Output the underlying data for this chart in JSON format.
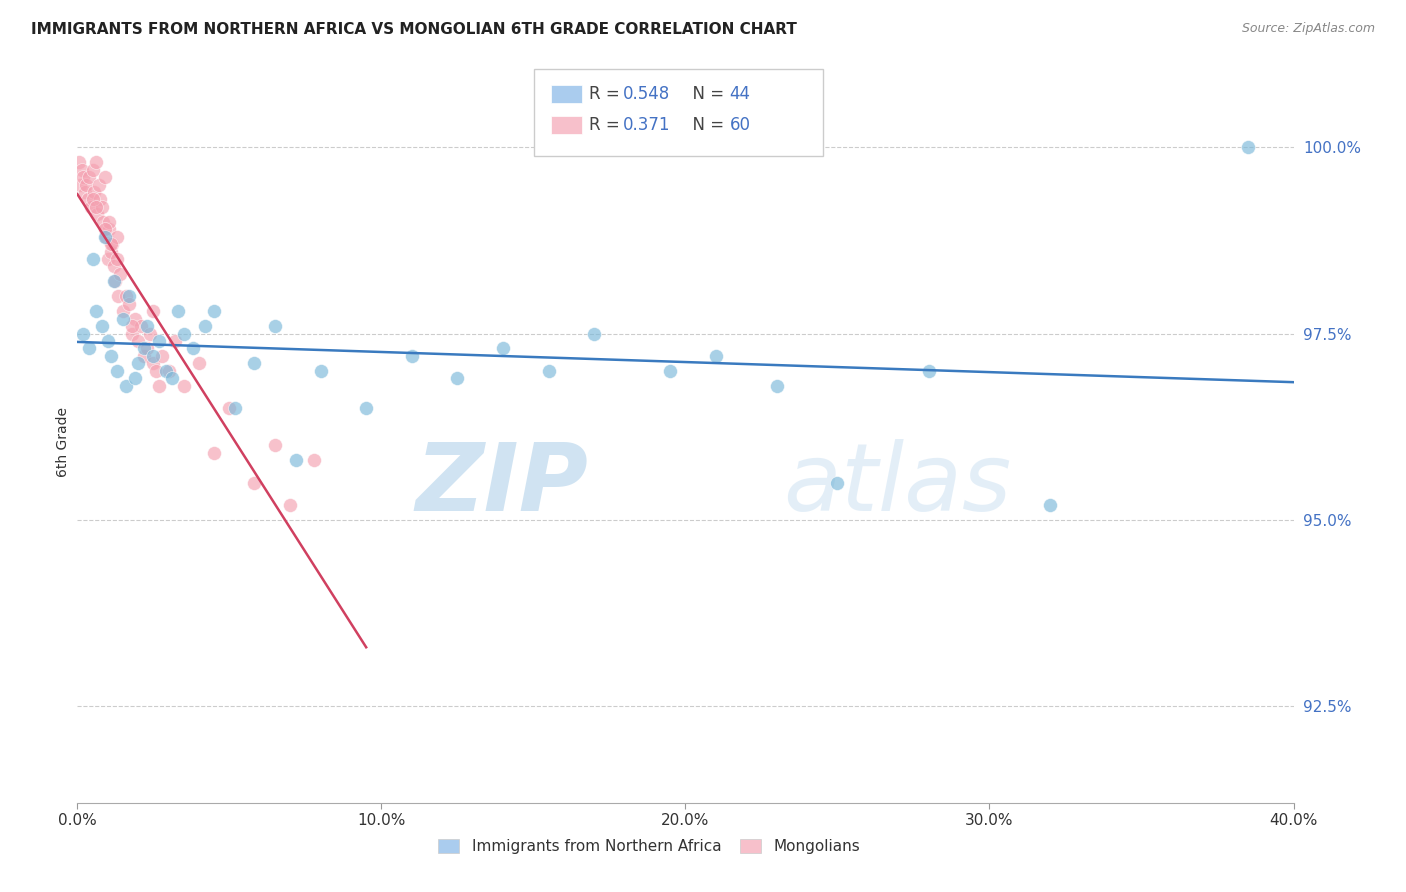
{
  "title": "IMMIGRANTS FROM NORTHERN AFRICA VS MONGOLIAN 6TH GRADE CORRELATION CHART",
  "source": "Source: ZipAtlas.com",
  "ylabel": "6th Grade",
  "yticks": [
    92.5,
    95.0,
    97.5,
    100.0
  ],
  "ytick_labels": [
    "92.5%",
    "95.0%",
    "97.5%",
    "100.0%"
  ],
  "xticks": [
    0,
    10,
    20,
    30,
    40
  ],
  "xtick_labels": [
    "0.0%",
    "10.0%",
    "20.0%",
    "30.0%",
    "40.0%"
  ],
  "xmin": 0.0,
  "xmax": 40.0,
  "ymin": 91.2,
  "ymax": 100.9,
  "blue_R": 0.548,
  "blue_N": 44,
  "pink_R": 0.371,
  "pink_N": 60,
  "blue_color": "#7ab8d9",
  "pink_color": "#f4a0b0",
  "blue_line_color": "#3a7abf",
  "pink_line_color": "#d04060",
  "legend_blue_color": "#aaccee",
  "legend_pink_color": "#f7c0cb",
  "watermark_zip": "ZIP",
  "watermark_atlas": "atlas",
  "blue_points_x": [
    0.2,
    0.4,
    0.5,
    0.6,
    0.8,
    0.9,
    1.0,
    1.1,
    1.2,
    1.3,
    1.5,
    1.6,
    1.7,
    1.9,
    2.0,
    2.2,
    2.3,
    2.5,
    2.7,
    2.9,
    3.1,
    3.3,
    3.5,
    3.8,
    4.2,
    4.5,
    5.2,
    5.8,
    6.5,
    7.2,
    8.0,
    9.5,
    11.0,
    12.5,
    14.0,
    15.5,
    17.0,
    19.5,
    21.0,
    23.0,
    25.0,
    28.0,
    32.0,
    38.5
  ],
  "blue_points_y": [
    97.5,
    97.3,
    98.5,
    97.8,
    97.6,
    98.8,
    97.4,
    97.2,
    98.2,
    97.0,
    97.7,
    96.8,
    98.0,
    96.9,
    97.1,
    97.3,
    97.6,
    97.2,
    97.4,
    97.0,
    96.9,
    97.8,
    97.5,
    97.3,
    97.6,
    97.8,
    96.5,
    97.1,
    97.6,
    95.8,
    97.0,
    96.5,
    97.2,
    96.9,
    97.3,
    97.0,
    97.5,
    97.0,
    97.2,
    96.8,
    95.5,
    97.0,
    95.2,
    100.0
  ],
  "pink_points_x": [
    0.05,
    0.1,
    0.15,
    0.2,
    0.25,
    0.3,
    0.35,
    0.4,
    0.45,
    0.5,
    0.55,
    0.6,
    0.65,
    0.7,
    0.75,
    0.8,
    0.85,
    0.9,
    0.95,
    1.0,
    1.05,
    1.1,
    1.15,
    1.2,
    1.25,
    1.3,
    1.35,
    1.4,
    1.5,
    1.6,
    1.7,
    1.8,
    1.9,
    2.0,
    2.1,
    2.2,
    2.3,
    2.4,
    2.5,
    2.6,
    2.7,
    2.8,
    3.0,
    3.2,
    3.5,
    4.0,
    4.5,
    5.0,
    5.8,
    6.5,
    7.0,
    7.8,
    1.05,
    1.3,
    0.5,
    0.9,
    1.8,
    2.5,
    0.6,
    1.1
  ],
  "pink_points_y": [
    99.8,
    99.5,
    99.7,
    99.6,
    99.4,
    99.5,
    99.3,
    99.6,
    99.2,
    99.7,
    99.4,
    99.8,
    99.1,
    99.5,
    99.3,
    99.2,
    99.0,
    99.6,
    98.8,
    98.5,
    98.9,
    98.6,
    98.7,
    98.4,
    98.2,
    98.5,
    98.0,
    98.3,
    97.8,
    98.0,
    97.9,
    97.5,
    97.7,
    97.4,
    97.6,
    97.2,
    97.3,
    97.5,
    97.1,
    97.0,
    96.8,
    97.2,
    97.0,
    97.4,
    96.8,
    97.1,
    95.9,
    96.5,
    95.5,
    96.0,
    95.2,
    95.8,
    99.0,
    98.8,
    99.3,
    98.9,
    97.6,
    97.8,
    99.2,
    98.7
  ],
  "blue_line_x": [
    0.0,
    40.0
  ],
  "pink_line_x_start": 0.0,
  "pink_line_x_end": 9.5
}
